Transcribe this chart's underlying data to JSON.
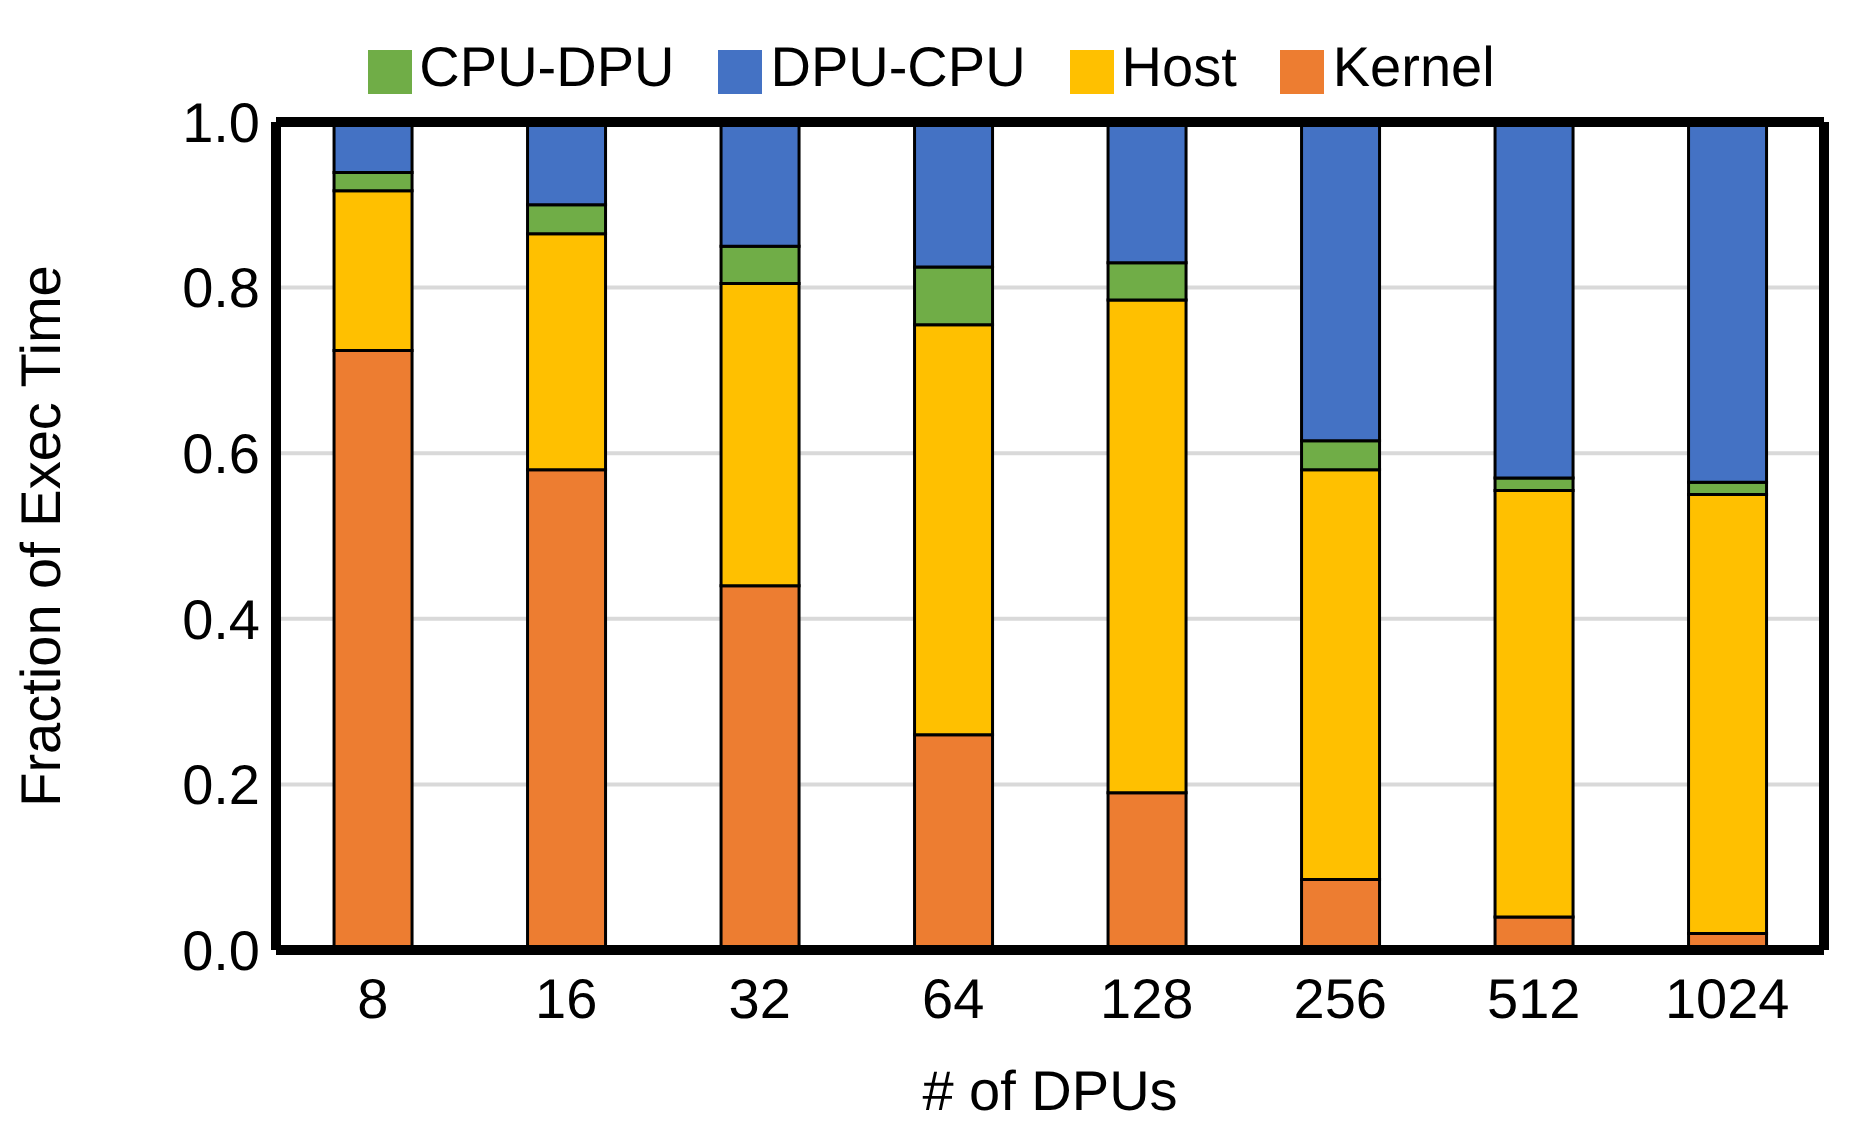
{
  "chart_data": {
    "type": "bar",
    "stacked": true,
    "xlabel": "# of DPUs",
    "ylabel": "Fraction of Exec Time",
    "categories": [
      "8",
      "16",
      "32",
      "64",
      "128",
      "256",
      "512",
      "1024"
    ],
    "series": [
      {
        "name": "Kernel",
        "color": "#ed7d31",
        "values": [
          0.724,
          0.58,
          0.44,
          0.26,
          0.19,
          0.085,
          0.04,
          0.02
        ]
      },
      {
        "name": "Host",
        "color": "#ffc000",
        "values": [
          0.193,
          0.285,
          0.365,
          0.495,
          0.595,
          0.495,
          0.515,
          0.53
        ]
      },
      {
        "name": "CPU-DPU",
        "color": "#70ad47",
        "values": [
          0.022,
          0.035,
          0.045,
          0.07,
          0.045,
          0.035,
          0.015,
          0.015
        ]
      },
      {
        "name": "DPU-CPU",
        "color": "#4472c4",
        "values": [
          0.061,
          0.1,
          0.15,
          0.175,
          0.17,
          0.385,
          0.43,
          0.435
        ]
      }
    ],
    "ylim": [
      0,
      1
    ],
    "yticks": [
      {
        "value": 0,
        "label": "0.0"
      },
      {
        "value": 0.2,
        "label": "0.2"
      },
      {
        "value": 0.4,
        "label": "0.4"
      },
      {
        "value": 0.6,
        "label": "0.6"
      },
      {
        "value": 0.8,
        "label": "0.8"
      },
      {
        "value": 1,
        "label": "1.0"
      }
    ],
    "grid": "y",
    "legend": "top"
  }
}
